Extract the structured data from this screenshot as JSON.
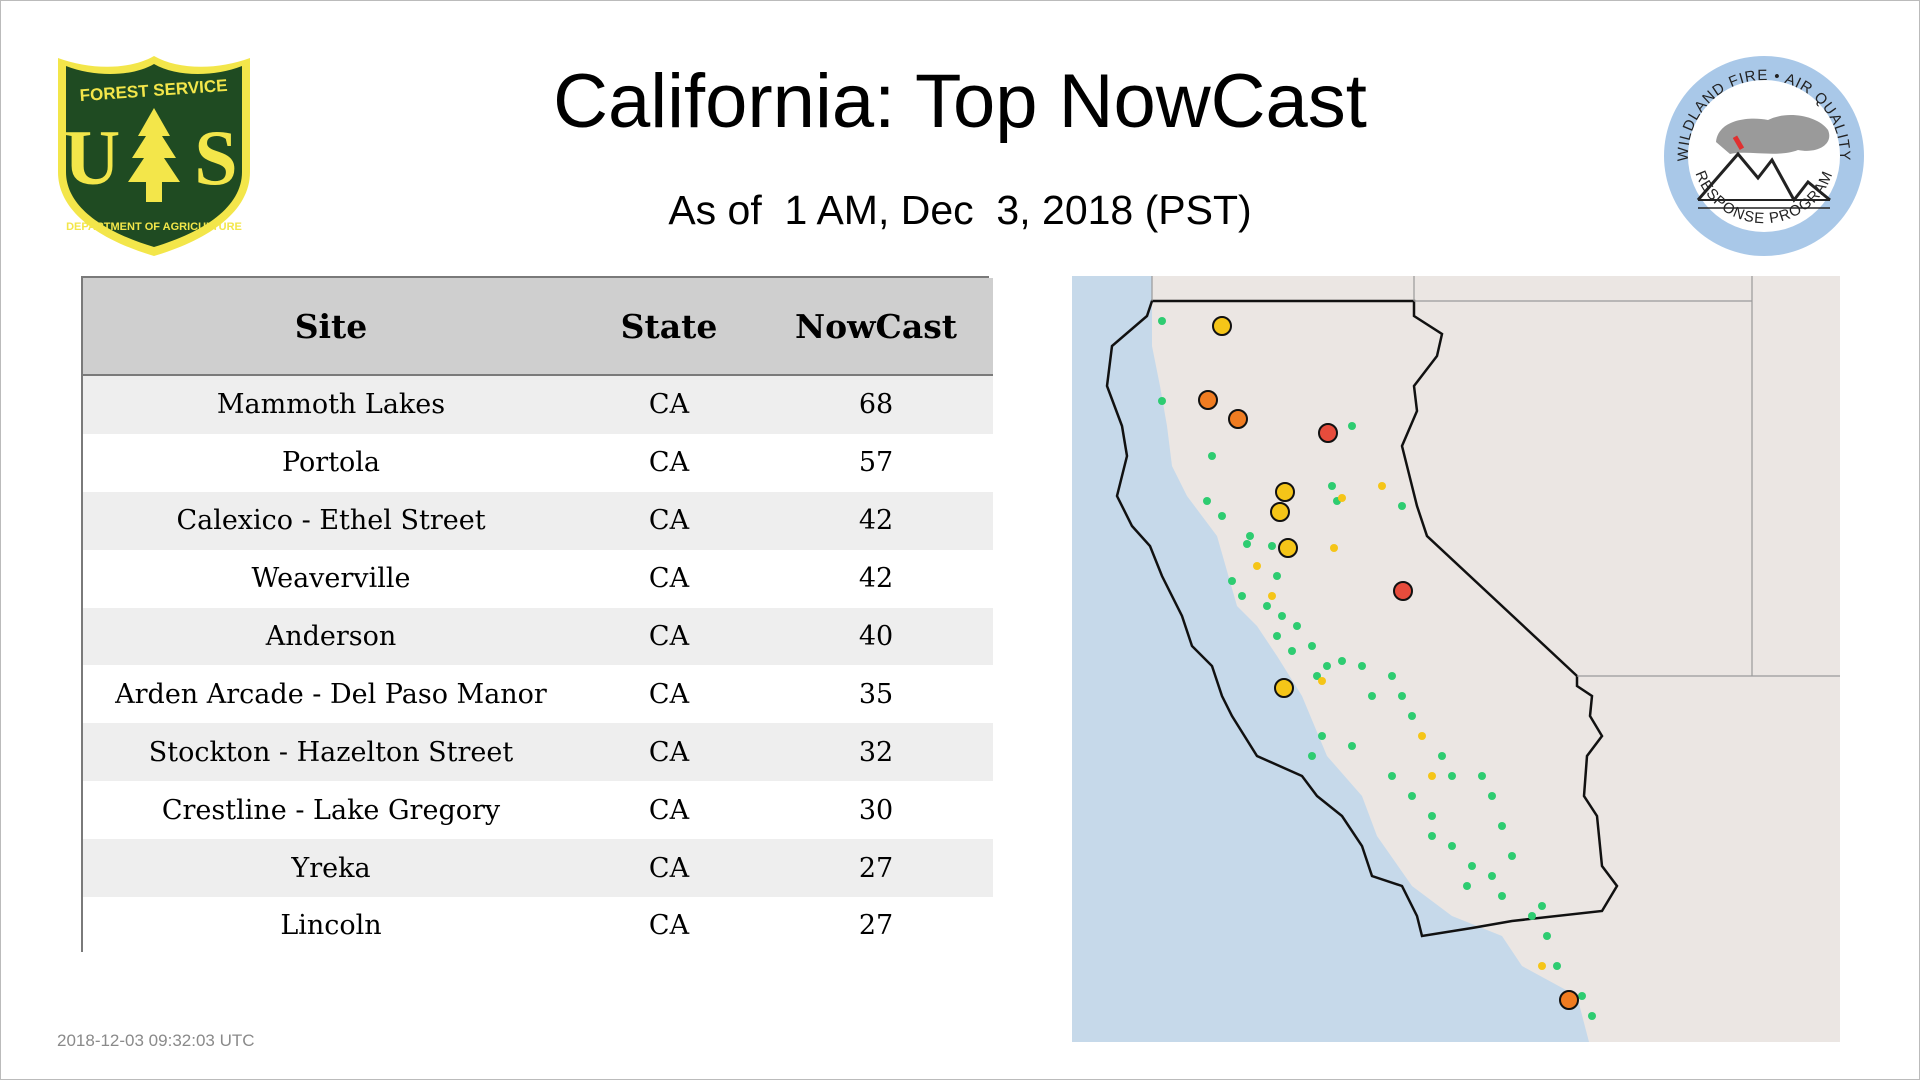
{
  "header": {
    "title": "California: Top NowCast",
    "subtitle": "As of  1 AM, Dec  3, 2018 (PST)"
  },
  "logos": {
    "left": {
      "top_text": "FOREST SERVICE",
      "u_letter": "U",
      "s_letter": "S",
      "bottom_text": "DEPARTMENT OF AGRICULTURE"
    },
    "right": {
      "top_text": "WILDLAND FIRE • AIR QUALITY",
      "bottom_text": "RESPONSE PROGRAM"
    }
  },
  "table": {
    "headers": [
      "Site",
      "State",
      "NowCast"
    ],
    "rows": [
      {
        "site": "Mammoth Lakes",
        "state": "CA",
        "nowcast": "68"
      },
      {
        "site": "Portola",
        "state": "CA",
        "nowcast": "57"
      },
      {
        "site": "Calexico - Ethel Street",
        "state": "CA",
        "nowcast": "42"
      },
      {
        "site": "Weaverville",
        "state": "CA",
        "nowcast": "42"
      },
      {
        "site": "Anderson",
        "state": "CA",
        "nowcast": "40"
      },
      {
        "site": "Arden Arcade - Del Paso Manor",
        "state": "CA",
        "nowcast": "35"
      },
      {
        "site": "Stockton - Hazelton Street",
        "state": "CA",
        "nowcast": "32"
      },
      {
        "site": "Crestline - Lake Gregory",
        "state": "CA",
        "nowcast": "30"
      },
      {
        "site": "Yreka",
        "state": "CA",
        "nowcast": "27"
      },
      {
        "site": "Lincoln",
        "state": "CA",
        "nowcast": "27"
      }
    ]
  },
  "map": {
    "colors": {
      "ocean": "#c6d9ea",
      "land": "#ebe6e3",
      "good": "#2ecc71",
      "moderate": "#f5c518",
      "usg": "#f07c21",
      "unhealthy": "#e74c3c"
    }
  },
  "footer": {
    "timestamp": "2018-12-03 09:32:03 UTC"
  }
}
